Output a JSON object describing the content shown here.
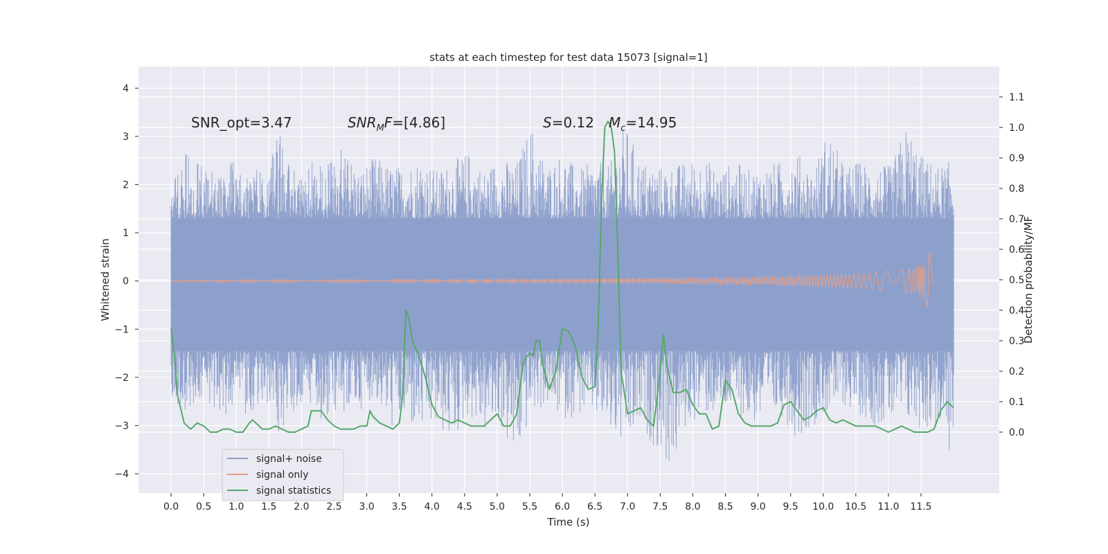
{
  "chart_data": {
    "type": "line",
    "title": "stats at each timestep for test data 15073 [signal=1]",
    "xlabel": "Time (s)",
    "ylabel_left": "Whitened strain",
    "ylabel_right": "Detection probability/MF",
    "xlim": [
      -0.5,
      12.7
    ],
    "ylim_left": [
      -4.4,
      4.45
    ],
    "ylim_right": [
      -0.2,
      1.2
    ],
    "x_ticks": [
      "0.0",
      "0.5",
      "1.0",
      "1.5",
      "2.0",
      "2.5",
      "3.0",
      "3.5",
      "4.0",
      "4.5",
      "5.0",
      "5.5",
      "6.0",
      "6.5",
      "7.0",
      "7.5",
      "8.0",
      "8.5",
      "9.0",
      "9.5",
      "10.0",
      "10.5",
      "11.0",
      "11.5"
    ],
    "y_left_ticks": [
      "4",
      "3",
      "2",
      "1",
      "0",
      "−1",
      "−2",
      "−3",
      "−4"
    ],
    "y_left_tick_values": [
      4,
      3,
      2,
      1,
      0,
      -1,
      -2,
      -3,
      -4
    ],
    "y_right_ticks": [
      "1.1",
      "1.0",
      "0.9",
      "0.8",
      "0.7",
      "0.6",
      "0.5",
      "0.4",
      "0.3",
      "0.2",
      "0.1",
      "0.0"
    ],
    "y_right_tick_values": [
      1.1,
      1.0,
      0.9,
      0.8,
      0.7,
      0.6,
      0.5,
      0.4,
      0.3,
      0.2,
      0.1,
      0.0
    ],
    "grid": true,
    "legend_position": "lower-left",
    "annotations": {
      "snr_opt": "SNR_opt=3.47",
      "snr_mf_main": "SNR",
      "snr_mf_sub": "M",
      "snr_mf_tail": "F",
      "snr_mf_value": "=[4.86]",
      "s_sym": "S",
      "s_value": "=0.12",
      "mc_main": "M",
      "mc_sub": "c",
      "mc_value": "=14.95"
    },
    "series": [
      {
        "name": "signal+ noise",
        "color": "#8da0cb",
        "axis": "left",
        "t_start": 0.0,
        "t_end": 12.0,
        "core_band": [
          -1.45,
          1.3
        ],
        "env_top": [
          2.1,
          2.7,
          2.4,
          2.3,
          2.5,
          2.3,
          2.4,
          3.1,
          2.3,
          2.5,
          2.4,
          2.9,
          2.3,
          2.6,
          2.4,
          2.4,
          2.6,
          2.3,
          2.5,
          2.7,
          2.3,
          2.6,
          2.4,
          3.3,
          2.4,
          2.7,
          2.3,
          2.5,
          2.4,
          3.3,
          2.5,
          2.4,
          2.4,
          2.5,
          2.6,
          2.3,
          2.5,
          2.3,
          2.4,
          2.5,
          2.7,
          2.3,
          3.2,
          2.4,
          2.5,
          2.4,
          2.4,
          3.3,
          2.6,
          2.4,
          2.5
        ],
        "env_bottom": [
          -2.5,
          -2.7,
          -2.4,
          -3.0,
          -2.6,
          -2.8,
          -3.0,
          -3.2,
          -2.6,
          -2.6,
          -3.1,
          -2.8,
          -2.7,
          -2.4,
          -3.1,
          -3.0,
          -3.2,
          -3.1,
          -3.4,
          -2.8,
          -3.2,
          -3.0,
          -3.9,
          -2.8,
          -2.6,
          -2.9,
          -2.8,
          -2.8,
          -3.2,
          -3.6,
          -3.1,
          -3.5,
          -4.0,
          -3.0,
          -2.8,
          -2.8,
          -2.7,
          -3.0,
          -3.0,
          -2.8,
          -3.3,
          -3.0,
          -2.8,
          -2.6,
          -2.8,
          -3.0,
          -3.0,
          -3.0,
          -3.1,
          -3.1,
          -3.9
        ]
      },
      {
        "name": "signal only",
        "color": "#e5a08a",
        "axis": "left",
        "t_start": 0.0,
        "t_merger": 11.65,
        "peak_amplitude": 0.62,
        "t_after": 0.05,
        "baseline_amplitude": 0.02
      },
      {
        "name": "signal statistics",
        "color": "#55a868",
        "axis": "right",
        "x": [
          0.0,
          0.05,
          0.1,
          0.2,
          0.3,
          0.4,
          0.5,
          0.6,
          0.7,
          0.8,
          0.9,
          1.0,
          1.1,
          1.2,
          1.25,
          1.3,
          1.4,
          1.5,
          1.6,
          1.7,
          1.8,
          1.9,
          2.0,
          2.1,
          2.15,
          2.2,
          2.3,
          2.4,
          2.5,
          2.6,
          2.7,
          2.8,
          2.9,
          3.0,
          3.05,
          3.1,
          3.2,
          3.3,
          3.4,
          3.5,
          3.55,
          3.6,
          3.65,
          3.7,
          3.8,
          3.9,
          4.0,
          4.1,
          4.2,
          4.3,
          4.4,
          4.5,
          4.6,
          4.7,
          4.8,
          4.9,
          5.0,
          5.1,
          5.2,
          5.3,
          5.4,
          5.5,
          5.55,
          5.6,
          5.65,
          5.7,
          5.8,
          5.9,
          6.0,
          6.1,
          6.2,
          6.3,
          6.4,
          6.5,
          6.55,
          6.6,
          6.65,
          6.7,
          6.75,
          6.8,
          6.85,
          6.9,
          7.0,
          7.1,
          7.2,
          7.3,
          7.4,
          7.5,
          7.55,
          7.6,
          7.7,
          7.8,
          7.9,
          8.0,
          8.1,
          8.2,
          8.3,
          8.4,
          8.5,
          8.6,
          8.7,
          8.8,
          8.9,
          9.0,
          9.1,
          9.2,
          9.3,
          9.4,
          9.5,
          9.6,
          9.7,
          9.8,
          9.9,
          10.0,
          10.1,
          10.2,
          10.3,
          10.4,
          10.5,
          10.6,
          10.7,
          10.8,
          10.9,
          11.0,
          11.1,
          11.2,
          11.3,
          11.4,
          11.5,
          11.6,
          11.7,
          11.8,
          11.9,
          12.0
        ],
        "y": [
          0.34,
          0.25,
          0.12,
          0.03,
          0.01,
          0.03,
          0.02,
          0.0,
          0.0,
          0.01,
          0.01,
          0.0,
          0.0,
          0.03,
          0.04,
          0.03,
          0.01,
          0.01,
          0.02,
          0.01,
          0.0,
          0.0,
          0.01,
          0.02,
          0.07,
          0.07,
          0.07,
          0.04,
          0.02,
          0.01,
          0.01,
          0.01,
          0.02,
          0.02,
          0.07,
          0.05,
          0.03,
          0.02,
          0.01,
          0.03,
          0.12,
          0.4,
          0.37,
          0.3,
          0.25,
          0.18,
          0.09,
          0.05,
          0.04,
          0.03,
          0.04,
          0.03,
          0.02,
          0.02,
          0.02,
          0.04,
          0.06,
          0.02,
          0.02,
          0.06,
          0.23,
          0.26,
          0.25,
          0.3,
          0.3,
          0.22,
          0.14,
          0.2,
          0.34,
          0.33,
          0.28,
          0.18,
          0.14,
          0.15,
          0.35,
          0.75,
          1.0,
          1.02,
          1.0,
          0.92,
          0.6,
          0.2,
          0.06,
          0.07,
          0.08,
          0.04,
          0.02,
          0.2,
          0.32,
          0.22,
          0.13,
          0.13,
          0.14,
          0.09,
          0.06,
          0.06,
          0.01,
          0.02,
          0.17,
          0.14,
          0.06,
          0.03,
          0.02,
          0.02,
          0.02,
          0.02,
          0.03,
          0.09,
          0.1,
          0.07,
          0.04,
          0.05,
          0.07,
          0.08,
          0.04,
          0.03,
          0.04,
          0.03,
          0.02,
          0.02,
          0.02,
          0.02,
          0.01,
          0.0,
          0.01,
          0.02,
          0.01,
          0.0,
          0.0,
          0.0,
          0.01,
          0.07,
          0.1,
          0.08
        ]
      }
    ]
  }
}
